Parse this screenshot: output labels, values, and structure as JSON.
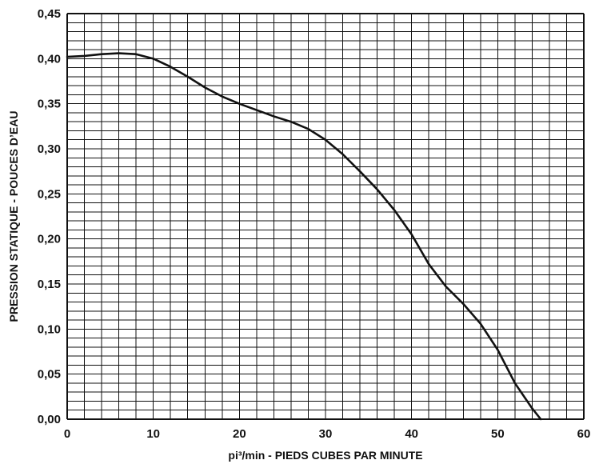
{
  "chart_data": {
    "type": "line",
    "title": "",
    "xlabel": "pi³/min - PIEDS CUBES PAR MINUTE",
    "ylabel": "PRESSION STATIQUE - POUCES D’EAU",
    "xlim": [
      0,
      60
    ],
    "ylim": [
      0,
      0.45
    ],
    "grid": true,
    "legend": "none",
    "x_ticks": [
      0,
      10,
      20,
      30,
      40,
      50,
      60
    ],
    "x_tick_labels": [
      "0",
      "10",
      "20",
      "30",
      "40",
      "50",
      "60"
    ],
    "y_ticks": [
      0,
      0.05,
      0.1,
      0.15,
      0.2,
      0.25,
      0.3,
      0.35,
      0.4,
      0.45
    ],
    "y_tick_labels": [
      "0,00",
      "0,05",
      "0,10",
      "0,15",
      "0,20",
      "0,25",
      "0,30",
      "0,35",
      "0,40",
      "0,45"
    ],
    "series": [
      {
        "x": [
          0,
          2,
          4,
          6,
          8,
          10,
          12,
          14,
          16,
          18,
          20,
          22,
          24,
          26,
          28,
          30,
          32,
          34,
          36,
          38,
          40,
          42,
          44,
          46,
          48,
          50,
          52,
          54,
          55
        ],
        "y": [
          0.402,
          0.403,
          0.405,
          0.406,
          0.405,
          0.4,
          0.391,
          0.38,
          0.368,
          0.358,
          0.35,
          0.343,
          0.336,
          0.33,
          0.322,
          0.31,
          0.294,
          0.275,
          0.255,
          0.232,
          0.205,
          0.172,
          0.147,
          0.128,
          0.106,
          0.077,
          0.04,
          0.012,
          0.0
        ]
      }
    ],
    "colors": {
      "line": "#111111",
      "grid": "#111111",
      "background": "#ffffff"
    }
  }
}
